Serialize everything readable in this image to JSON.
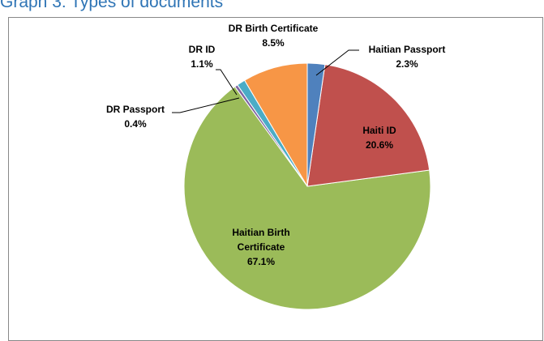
{
  "chart_data": {
    "type": "pie",
    "title": "Graph 3: Types of documents",
    "categories": [
      "Haitian Passport",
      "Haiti ID",
      "Haitian Birth Certificate",
      "DR Passport",
      "DR ID",
      "DR Birth Certificate"
    ],
    "values": [
      2.3,
      20.6,
      67.1,
      0.4,
      1.1,
      8.5
    ],
    "value_labels": [
      "2.3%",
      "20.6%",
      "67.1%",
      "0.4%",
      "1.1%",
      "8.5%"
    ],
    "colors": [
      "#4f81bd",
      "#c0504d",
      "#9bbb59",
      "#8064a2",
      "#4bacc6",
      "#f79646"
    ]
  }
}
